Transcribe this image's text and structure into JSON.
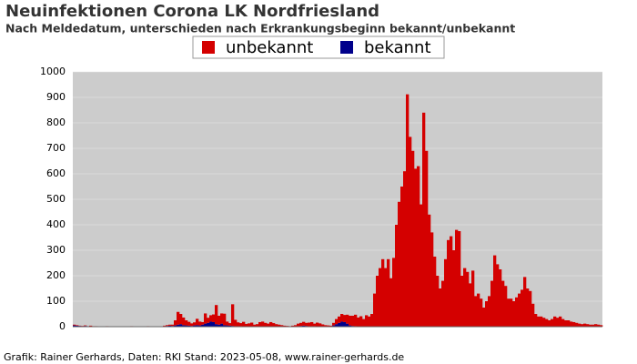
{
  "chart_data": {
    "type": "stacked-bar",
    "title": "Neuinfektionen Corona LK Nordfriesland",
    "subtitle": "Nach Meldedatum, unterschieden nach Erkrankungsbeginn bekannt/unbekannt",
    "footer": "Grafik: Rainer Gerhards, Daten: RKI Stand: 2023-05-08, www.rainer-gerhards.de",
    "ylim": [
      0,
      1000
    ],
    "yticks": [
      0,
      100,
      200,
      300,
      400,
      500,
      600,
      700,
      800,
      900,
      1000
    ],
    "grid": true,
    "series": [
      {
        "name": "bekannt",
        "color": "#00008b",
        "values": [
          5,
          4,
          3,
          2,
          3,
          2,
          1,
          0,
          1,
          0,
          0,
          0,
          0,
          0,
          0,
          0,
          0,
          0,
          0,
          0,
          0,
          0,
          0,
          0,
          0,
          0,
          0,
          0,
          0,
          0,
          0,
          0,
          0,
          2,
          3,
          4,
          3,
          5,
          8,
          10,
          6,
          5,
          4,
          3,
          5,
          6,
          5,
          8,
          12,
          15,
          20,
          18,
          10,
          8,
          12,
          6,
          5,
          4,
          3,
          2,
          2,
          2,
          1,
          1,
          1,
          1,
          0,
          0,
          0,
          0,
          0,
          0,
          0,
          0,
          0,
          0,
          0,
          0,
          0,
          0,
          0,
          0,
          2,
          3,
          4,
          3,
          2,
          2,
          2,
          1,
          1,
          1,
          0,
          0,
          0,
          5,
          10,
          15,
          20,
          18,
          12,
          5,
          3,
          2,
          1,
          1,
          0,
          0,
          0,
          0,
          0,
          0,
          0,
          0,
          0,
          0,
          0,
          0,
          0,
          0,
          0,
          0,
          0,
          0,
          0,
          0,
          0,
          0,
          0,
          0,
          0,
          0,
          0,
          0,
          0,
          0,
          0,
          0,
          0,
          0,
          0,
          0,
          0,
          0,
          0,
          0,
          0,
          0,
          0,
          0,
          0,
          0,
          0,
          0,
          0,
          0,
          0,
          0,
          0,
          0,
          0,
          0,
          0,
          0,
          0,
          0,
          0,
          0,
          0,
          0,
          0,
          0,
          0,
          0,
          0,
          0,
          0,
          0,
          0,
          0,
          0,
          0,
          0,
          0,
          0,
          0,
          0,
          0,
          0,
          0,
          0,
          0,
          0,
          0
        ]
      },
      {
        "name": "unbekannt",
        "color": "#d40000",
        "values": [
          3,
          2,
          1,
          1,
          2,
          0,
          3,
          2,
          1,
          0,
          0,
          0,
          2,
          0,
          0,
          1,
          0,
          0,
          0,
          0,
          0,
          2,
          0,
          0,
          1,
          0,
          0,
          2,
          0,
          0,
          1,
          0,
          0,
          2,
          3,
          4,
          5,
          20,
          50,
          40,
          30,
          20,
          15,
          10,
          12,
          25,
          15,
          10,
          40,
          20,
          25,
          30,
          75,
          35,
          40,
          45,
          15,
          10,
          85,
          25,
          15,
          12,
          18,
          10,
          12,
          15,
          8,
          10,
          18,
          20,
          15,
          12,
          18,
          14,
          10,
          8,
          6,
          4,
          3,
          2,
          4,
          6,
          10,
          12,
          15,
          12,
          14,
          16,
          10,
          15,
          12,
          8,
          6,
          5,
          4,
          10,
          20,
          25,
          30,
          28,
          35,
          38,
          40,
          45,
          35,
          40,
          30,
          45,
          40,
          50,
          130,
          200,
          230,
          265,
          230,
          265,
          190,
          270,
          400,
          490,
          550,
          610,
          912,
          745,
          690,
          620,
          630,
          480,
          840,
          690,
          440,
          370,
          275,
          200,
          150,
          180,
          265,
          340,
          355,
          300,
          380,
          375,
          200,
          230,
          215,
          170,
          220,
          120,
          130,
          110,
          75,
          100,
          120,
          180,
          280,
          245,
          225,
          180,
          160,
          110,
          110,
          100,
          115,
          130,
          145,
          195,
          150,
          140,
          90,
          50,
          40,
          40,
          35,
          30,
          25,
          30,
          40,
          35,
          40,
          30,
          25,
          25,
          20,
          18,
          15,
          12,
          10,
          12,
          10,
          8,
          8,
          10,
          8,
          6
        ]
      }
    ],
    "legend": "top-center"
  }
}
